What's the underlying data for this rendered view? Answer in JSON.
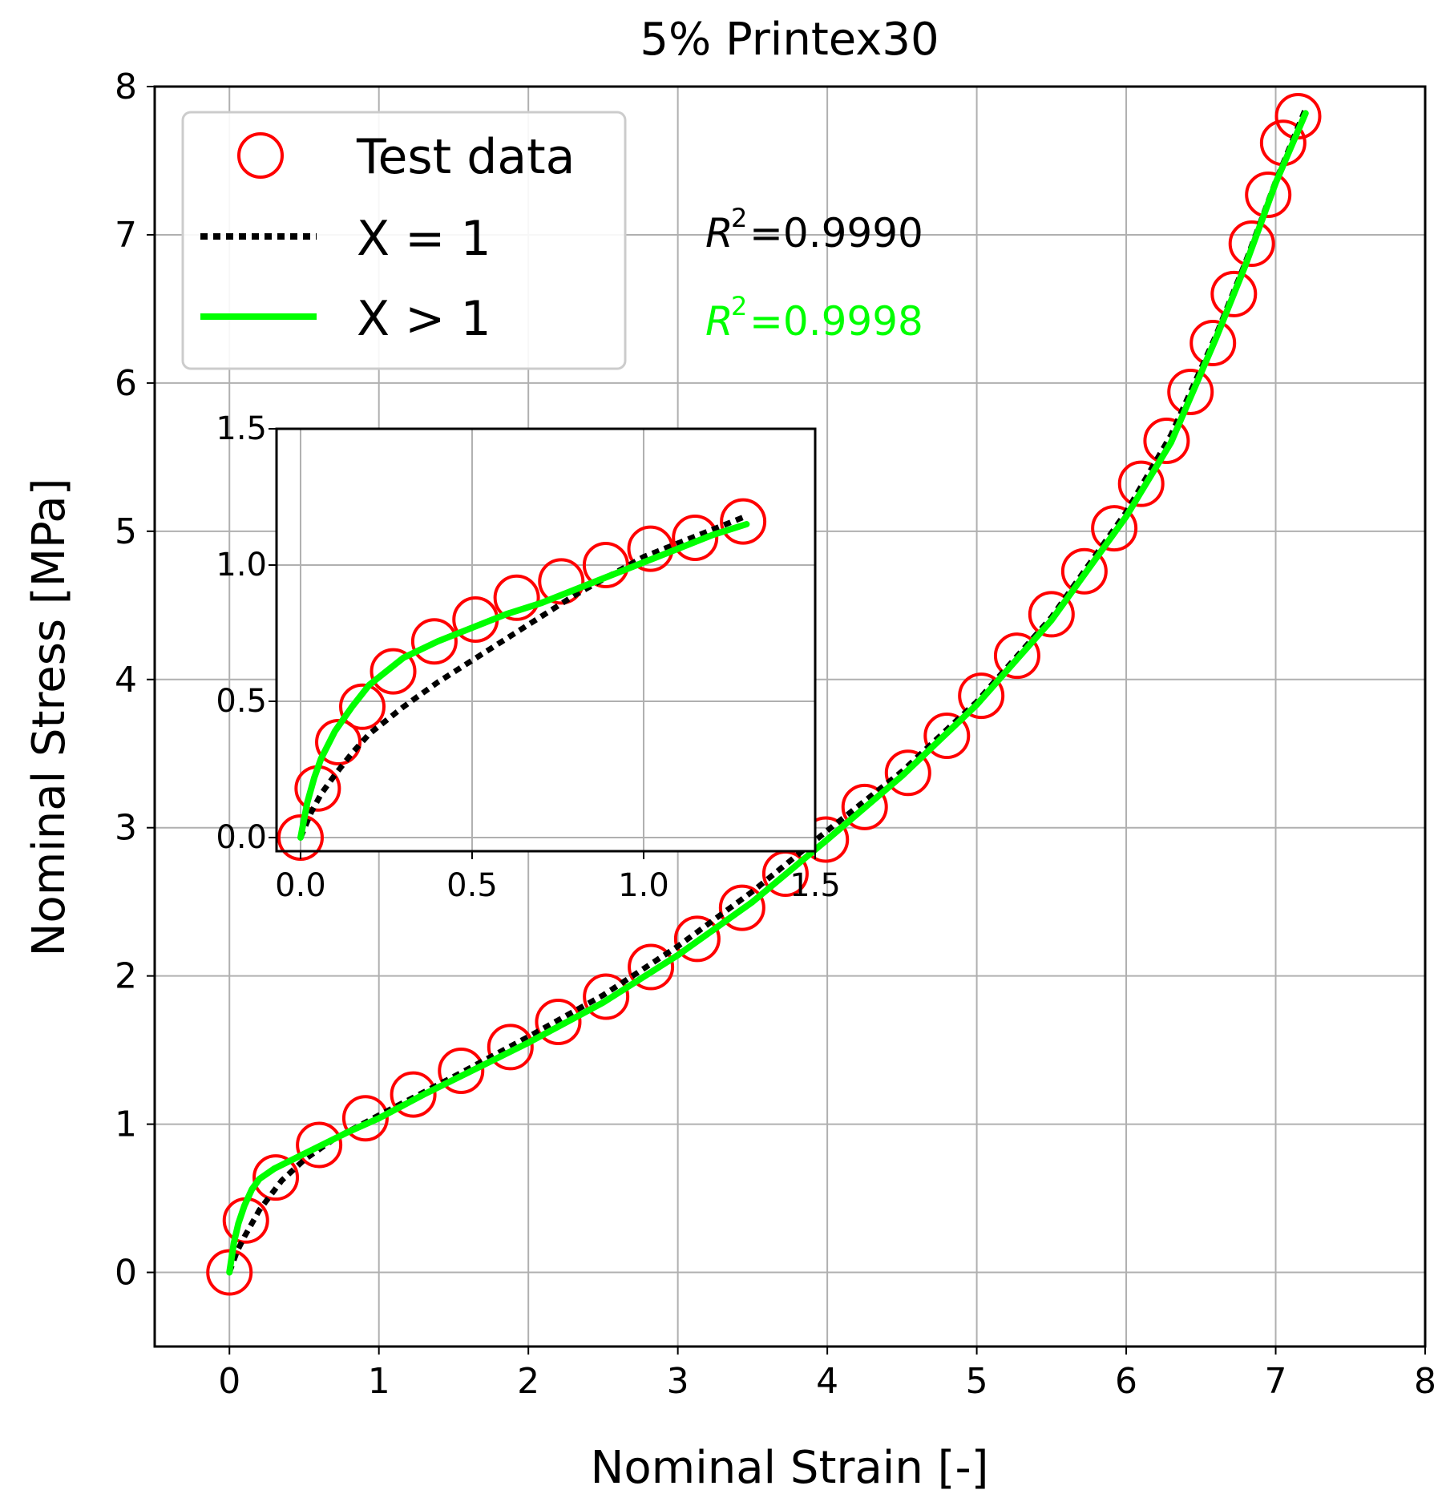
{
  "chart_data": [
    {
      "type": "scatter+line",
      "title": "5% Printex30",
      "xlabel": "Nominal Strain [-]",
      "ylabel": "Nominal Stress [MPa]",
      "xlim": [
        -0.5,
        8
      ],
      "ylim": [
        -0.5,
        8
      ],
      "xticks": [
        0,
        1,
        2,
        3,
        4,
        5,
        6,
        7,
        8
      ],
      "yticks": [
        0,
        1,
        2,
        3,
        4,
        5,
        6,
        7,
        8
      ],
      "grid": true,
      "legend": {
        "position": "top-left",
        "entries": [
          "Test data",
          "X = 1",
          "X > 1"
        ]
      },
      "annotations": [
        {
          "label": "R",
          "sup": "2",
          "value": "=0.9990",
          "color": "#000000"
        },
        {
          "label": "R",
          "sup": "2",
          "value": "=0.9998",
          "color": "#00ff00"
        }
      ],
      "series": [
        {
          "name": "Test data",
          "style": "open-circle",
          "color": "#ff0000",
          "x": [
            0.0,
            0.11,
            0.31,
            0.6,
            0.91,
            1.23,
            1.55,
            1.88,
            2.2,
            2.52,
            2.82,
            3.13,
            3.43,
            3.72,
            3.99,
            4.25,
            4.54,
            4.8,
            5.03,
            5.27,
            5.5,
            5.72,
            5.92,
            6.1,
            6.27,
            6.43,
            6.58,
            6.72,
            6.84,
            6.95,
            7.05,
            7.15
          ],
          "y": [
            0.0,
            0.35,
            0.64,
            0.86,
            1.04,
            1.2,
            1.36,
            1.52,
            1.69,
            1.86,
            2.06,
            2.25,
            2.46,
            2.69,
            2.92,
            3.14,
            3.37,
            3.62,
            3.89,
            4.16,
            4.44,
            4.73,
            5.02,
            5.32,
            5.61,
            5.94,
            6.27,
            6.6,
            6.94,
            7.27,
            7.62,
            7.8
          ]
        },
        {
          "name": "X = 1",
          "style": "dotted",
          "color": "#000000",
          "x": [
            0.0,
            0.05,
            0.1,
            0.2,
            0.35,
            0.5,
            0.7,
            1.0,
            1.5,
            2.0,
            2.5,
            3.0,
            3.5,
            4.0,
            4.5,
            5.0,
            5.5,
            6.0,
            6.3,
            6.6,
            6.8,
            7.0,
            7.2
          ],
          "y": [
            0.0,
            0.14,
            0.24,
            0.42,
            0.62,
            0.76,
            0.9,
            1.06,
            1.32,
            1.59,
            1.87,
            2.2,
            2.57,
            2.98,
            3.38,
            3.85,
            4.42,
            5.13,
            5.65,
            6.32,
            6.82,
            7.36,
            7.85
          ]
        },
        {
          "name": "X > 1",
          "style": "solid",
          "color": "#00ff00",
          "x": [
            0.0,
            0.03,
            0.06,
            0.1,
            0.15,
            0.2,
            0.3,
            0.4,
            0.6,
            0.8,
            1.0,
            1.3,
            1.6,
            2.0,
            2.5,
            3.0,
            3.5,
            4.0,
            4.5,
            5.0,
            5.5,
            6.0,
            6.3,
            6.6,
            6.8,
            7.0,
            7.2
          ],
          "y": [
            0.0,
            0.2,
            0.33,
            0.45,
            0.56,
            0.63,
            0.7,
            0.75,
            0.85,
            0.95,
            1.04,
            1.2,
            1.35,
            1.55,
            1.82,
            2.14,
            2.5,
            2.92,
            3.35,
            3.83,
            4.4,
            5.1,
            5.6,
            6.3,
            6.8,
            7.35,
            7.82
          ]
        }
      ]
    },
    {
      "type": "scatter+line",
      "title": "",
      "xlabel": "",
      "ylabel": "",
      "xlim": [
        -0.07,
        1.5
      ],
      "ylim": [
        -0.05,
        1.5
      ],
      "xticks": [
        "0.0",
        "0.5",
        "1.0",
        "1.5"
      ],
      "yticks": [
        "0.0",
        "0.5",
        "1.0",
        "1.5"
      ],
      "grid": true,
      "series": [
        {
          "name": "Test data",
          "style": "open-circle",
          "color": "#ff0000",
          "x": [
            0.0,
            0.05,
            0.11,
            0.18,
            0.27,
            0.39,
            0.51,
            0.63,
            0.76,
            0.89,
            1.02,
            1.15,
            1.29
          ],
          "y": [
            0.0,
            0.18,
            0.35,
            0.48,
            0.61,
            0.72,
            0.8,
            0.88,
            0.94,
            1.0,
            1.06,
            1.1,
            1.16
          ]
        },
        {
          "name": "X = 1",
          "style": "dotted",
          "color": "#000000",
          "x": [
            0.0,
            0.03,
            0.06,
            0.1,
            0.15,
            0.2,
            0.3,
            0.4,
            0.5,
            0.6,
            0.7,
            0.8,
            0.9,
            1.0,
            1.1,
            1.2,
            1.3
          ],
          "y": [
            0.0,
            0.09,
            0.16,
            0.23,
            0.31,
            0.38,
            0.48,
            0.57,
            0.65,
            0.73,
            0.81,
            0.89,
            0.96,
            1.03,
            1.08,
            1.13,
            1.18
          ]
        },
        {
          "name": "X > 1",
          "style": "solid",
          "color": "#00ff00",
          "x": [
            0.0,
            0.02,
            0.04,
            0.06,
            0.1,
            0.15,
            0.2,
            0.25,
            0.3,
            0.4,
            0.5,
            0.6,
            0.7,
            0.8,
            0.9,
            1.0,
            1.1,
            1.2,
            1.3
          ],
          "y": [
            0.0,
            0.13,
            0.22,
            0.29,
            0.39,
            0.48,
            0.56,
            0.61,
            0.66,
            0.72,
            0.77,
            0.82,
            0.86,
            0.91,
            0.96,
            1.01,
            1.06,
            1.11,
            1.15
          ]
        }
      ]
    }
  ]
}
